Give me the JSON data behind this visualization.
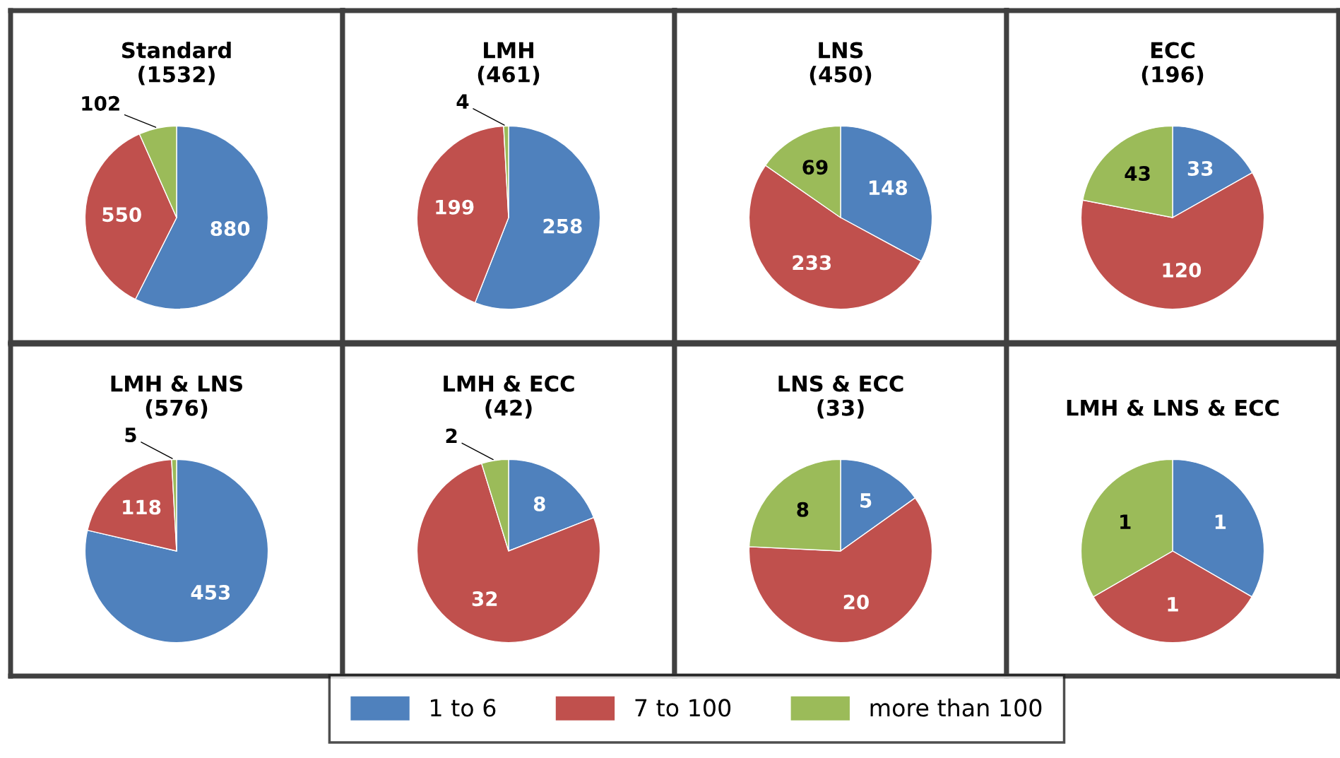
{
  "chart_data": [
    {
      "type": "pie",
      "title": "Standard\n(1532)",
      "categories": [
        "1 to 6",
        "7 to 100",
        "more than 100"
      ],
      "values": [
        880,
        550,
        102
      ],
      "colors": [
        "#4f81bd",
        "#c0504d",
        "#9bbb59"
      ],
      "data_labels": true,
      "legend": "bottom"
    },
    {
      "type": "pie",
      "title": "LMH\n(461)",
      "values": [
        258,
        199,
        4
      ],
      "colors": [
        "#4f81bd",
        "#c0504d",
        "#9bbb59"
      ],
      "data_labels": true
    },
    {
      "type": "pie",
      "title": "LNS\n(450)",
      "values": [
        148,
        233,
        69
      ],
      "colors": [
        "#4f81bd",
        "#c0504d",
        "#9bbb59"
      ],
      "data_labels": true
    },
    {
      "type": "pie",
      "title": "ECC\n(196)",
      "values": [
        33,
        120,
        43
      ],
      "colors": [
        "#4f81bd",
        "#c0504d",
        "#9bbb59"
      ],
      "data_labels": true
    },
    {
      "type": "pie",
      "title": "LMH & LNS\n(576)",
      "values": [
        453,
        118,
        5
      ],
      "colors": [
        "#4f81bd",
        "#c0504d",
        "#9bbb59"
      ],
      "data_labels": true
    },
    {
      "type": "pie",
      "title": "LMH & ECC\n(42)",
      "values": [
        8,
        32,
        2
      ],
      "colors": [
        "#4f81bd",
        "#c0504d",
        "#9bbb59"
      ],
      "data_labels": true
    },
    {
      "type": "pie",
      "title": "LNS & ECC\n(33)",
      "values": [
        5,
        20,
        8
      ],
      "colors": [
        "#4f81bd",
        "#c0504d",
        "#9bbb59"
      ],
      "data_labels": true
    },
    {
      "type": "pie",
      "title": "LMH & LNS & ECC",
      "values": [
        1,
        1,
        1
      ],
      "colors": [
        "#4f81bd",
        "#c0504d",
        "#9bbb59"
      ],
      "data_labels": true
    }
  ]
}
